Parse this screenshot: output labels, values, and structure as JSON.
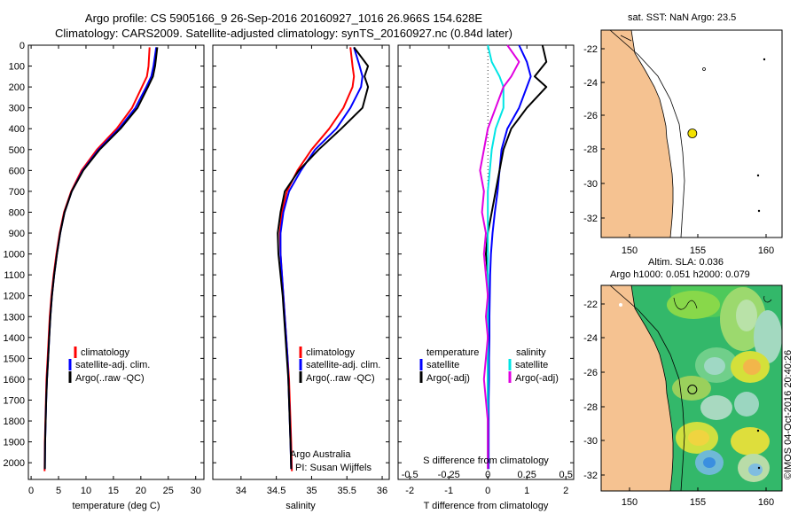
{
  "header": {
    "line1": "Argo profile: CS 5905166_9 26-Sep-2016 20160927_1016 26.966S 154.628E",
    "line2": "Climatology: CARS2009. Satellite-adjusted climatology: synTS_20160927.nc (0.84d later)"
  },
  "colors": {
    "climatology": "#ff0000",
    "satellite": "#0000ff",
    "argo": "#000000",
    "sat_salinity": "#00e5e5",
    "argo_salinity": "#e000e0",
    "land": "#f5c291"
  },
  "chart_data": [
    {
      "type": "line",
      "xlabel": "temperature (deg C)",
      "ylabel": "",
      "xlim": [
        -0.5,
        31.5
      ],
      "ylim": [
        2080,
        0
      ],
      "xticks": [
        0,
        5,
        10,
        15,
        20,
        25,
        30
      ],
      "yticks": [
        0,
        100,
        200,
        300,
        400,
        500,
        600,
        700,
        800,
        900,
        1000,
        1100,
        1200,
        1300,
        1400,
        1500,
        1600,
        1700,
        1800,
        1900,
        2000
      ],
      "legend": [
        "climatology",
        "satellite-adj. clim.",
        "Argo(..raw -QC)"
      ],
      "legend_position": "lower-right",
      "series": [
        {
          "name": "climatology",
          "color": "#ff0000",
          "x": [
            21.6,
            21.4,
            21.1,
            20.2,
            18.4,
            15.6,
            12.0,
            9.2,
            7.3,
            6.0,
            5.2,
            4.6,
            4.1,
            3.7,
            3.4,
            3.2,
            3.0,
            2.8,
            2.7,
            2.6,
            2.5,
            2.45
          ],
          "y": [
            10,
            100,
            150,
            200,
            300,
            400,
            500,
            600,
            700,
            800,
            900,
            1000,
            1100,
            1200,
            1300,
            1400,
            1500,
            1600,
            1700,
            1800,
            1900,
            2040
          ]
        },
        {
          "name": "satellite-adj. clim.",
          "color": "#0000ff",
          "x": [
            22.8,
            22.3,
            21.9,
            21.0,
            19.0,
            16.0,
            12.3,
            9.4,
            7.4,
            6.1,
            5.3,
            4.7,
            4.2,
            3.8,
            3.5,
            3.3,
            3.1,
            2.9,
            2.75,
            2.65,
            2.55,
            2.5
          ],
          "y": [
            10,
            100,
            150,
            200,
            300,
            400,
            500,
            600,
            700,
            800,
            900,
            1000,
            1100,
            1200,
            1300,
            1400,
            1500,
            1600,
            1700,
            1800,
            1900,
            2030
          ]
        },
        {
          "name": "Argo(..raw -QC)",
          "color": "#000000",
          "x": [
            23.0,
            22.6,
            22.2,
            21.3,
            19.4,
            16.3,
            12.5,
            9.5,
            7.4,
            6.1,
            5.3,
            4.7,
            4.2,
            3.8,
            3.5,
            3.3,
            3.1,
            2.9,
            2.75,
            2.65,
            2.55,
            2.5
          ],
          "y": [
            10,
            100,
            150,
            200,
            300,
            400,
            500,
            600,
            700,
            800,
            900,
            1000,
            1100,
            1200,
            1300,
            1400,
            1500,
            1600,
            1700,
            1800,
            1900,
            2030
          ]
        }
      ]
    },
    {
      "type": "line",
      "xlabel": "salinity",
      "xlim": [
        33.6,
        36.1
      ],
      "ylim": [
        2080,
        0
      ],
      "xticks": [
        34,
        34.5,
        35,
        35.5,
        36
      ],
      "legend": [
        "climatology",
        "satellite-adj. clim.",
        "Argo(..raw -QC)"
      ],
      "legend_position": "lower-right",
      "annotation": [
        "Argo Australia",
        "PI: Susan Wijffels"
      ],
      "series": [
        {
          "name": "climatology",
          "color": "#ff0000",
          "x": [
            35.55,
            35.58,
            35.6,
            35.58,
            35.45,
            35.25,
            35.0,
            34.8,
            34.65,
            34.58,
            34.55,
            34.56,
            34.58,
            34.6,
            34.62,
            34.64,
            34.66,
            34.68,
            34.69,
            34.7,
            34.71,
            34.72
          ],
          "y": [
            10,
            100,
            150,
            200,
            300,
            400,
            500,
            600,
            700,
            800,
            900,
            1000,
            1100,
            1200,
            1300,
            1400,
            1500,
            1600,
            1700,
            1800,
            1900,
            2040
          ]
        },
        {
          "name": "satellite-adj. clim.",
          "color": "#0000ff",
          "x": [
            35.6,
            35.68,
            35.72,
            35.7,
            35.55,
            35.35,
            35.05,
            34.85,
            34.68,
            34.6,
            34.56,
            34.56,
            34.58,
            34.6,
            34.62,
            34.64,
            34.66,
            34.67,
            34.68,
            34.69,
            34.7,
            34.71
          ],
          "y": [
            10,
            100,
            150,
            200,
            300,
            400,
            500,
            600,
            700,
            800,
            900,
            1000,
            1100,
            1200,
            1300,
            1400,
            1500,
            1600,
            1700,
            1800,
            1900,
            2030
          ]
        },
        {
          "name": "Argo(..raw -QC)",
          "color": "#000000",
          "x": [
            35.6,
            35.8,
            35.75,
            35.8,
            35.72,
            35.42,
            35.1,
            34.82,
            34.62,
            34.56,
            34.52,
            34.53,
            34.56,
            34.59,
            34.61,
            34.63,
            34.65,
            34.67,
            34.68,
            34.69,
            34.7,
            34.71
          ],
          "y": [
            10,
            100,
            150,
            200,
            300,
            400,
            500,
            600,
            700,
            800,
            900,
            1000,
            1100,
            1200,
            1300,
            1400,
            1500,
            1600,
            1700,
            1800,
            1900,
            2030
          ]
        }
      ]
    },
    {
      "type": "line",
      "xlabel": "T difference from climatology",
      "top_label": "S difference from climatology",
      "xlim": [
        -2.3,
        2.2
      ],
      "ylim": [
        2080,
        0
      ],
      "xticks": [
        -2,
        -1,
        0,
        1,
        2
      ],
      "top_ticks": [
        "-0.5",
        "-0.25",
        "0",
        "0.25",
        "0.5"
      ],
      "legend_left": {
        "title": "temperature",
        "items": [
          "satellite",
          "Argo(-adj)"
        ]
      },
      "legend_right": {
        "title": "salinity",
        "items": [
          "satellite",
          "Argo(-adj)"
        ]
      },
      "series": [
        {
          "name": "satellite (temperature)",
          "color": "#0000ff",
          "x": [
            0.8,
            1.0,
            1.1,
            1.0,
            0.8,
            0.5,
            0.35,
            0.3,
            0.25,
            0.18,
            0.12,
            0.08,
            0.06,
            0.05,
            0.04,
            0.04,
            0.03,
            0.03,
            0.02,
            0.02,
            0.02
          ],
          "y": [
            0,
            80,
            150,
            200,
            300,
            400,
            500,
            600,
            700,
            800,
            900,
            1000,
            1100,
            1200,
            1300,
            1400,
            1500,
            1600,
            1700,
            1800,
            2030
          ]
        },
        {
          "name": "Argo(-adj) (temperature)",
          "color": "#000000",
          "x": [
            1.4,
            1.5,
            1.2,
            1.5,
            1.0,
            0.6,
            0.4,
            0.3,
            0.2,
            0.1,
            0.0,
            -0.05,
            0.0,
            0.0,
            0.0,
            0.0,
            0.0,
            0.0,
            0.0,
            0.0,
            0.0
          ],
          "y": [
            0,
            80,
            150,
            200,
            300,
            400,
            500,
            600,
            700,
            800,
            900,
            1000,
            1100,
            1200,
            1300,
            1400,
            1500,
            1600,
            1700,
            1800,
            2030
          ]
        },
        {
          "name": "satellite (salinity)",
          "color": "#00e5e5",
          "x": [
            0.0,
            0.1,
            0.3,
            0.4,
            0.4,
            0.2,
            0.1,
            0.05,
            0.0,
            0.0,
            0.0,
            0.0,
            0.0,
            0.0,
            0.0,
            0.0,
            0.0,
            0.0,
            0.0,
            0.0,
            0.0
          ],
          "y": [
            0,
            80,
            150,
            200,
            300,
            400,
            500,
            600,
            700,
            800,
            900,
            1000,
            1100,
            1200,
            1300,
            1400,
            1500,
            1600,
            1700,
            1800,
            2030
          ]
        },
        {
          "name": "Argo(-adj) (salinity)",
          "color": "#e000e0",
          "x": [
            0.5,
            0.8,
            0.6,
            0.4,
            0.2,
            0.0,
            -0.1,
            -0.2,
            -0.1,
            -0.15,
            -0.05,
            -0.1,
            -0.05,
            0.0,
            -0.05,
            0.0,
            -0.05,
            -0.1,
            -0.05,
            0.0,
            0.0
          ],
          "y": [
            0,
            80,
            150,
            200,
            300,
            400,
            500,
            600,
            700,
            800,
            900,
            1000,
            1100,
            1200,
            1300,
            1400,
            1500,
            1600,
            1700,
            1800,
            2030
          ]
        }
      ]
    }
  ],
  "map_sst": {
    "title": "sat. SST: NaN Argo: 23.5",
    "lon_ticks": [
      "150",
      "155",
      "160"
    ],
    "lat_ticks": [
      "-22",
      "-24",
      "-26",
      "-28",
      "-30",
      "-32"
    ],
    "profile": {
      "lon": 154.6,
      "lat": -27.0
    }
  },
  "map_sla": {
    "title1": "Altim. SLA: 0.036",
    "title2": "Argo h1000: 0.051 h2000: 0.079",
    "lon_ticks": [
      "150",
      "155",
      "160"
    ],
    "lat_ticks": [
      "-22",
      "-24",
      "-26",
      "-28",
      "-30",
      "-32"
    ],
    "profile": {
      "lon": 154.6,
      "lat": -27.0
    }
  },
  "credit": "©IMOS 04-Oct-2016 20:40:26"
}
